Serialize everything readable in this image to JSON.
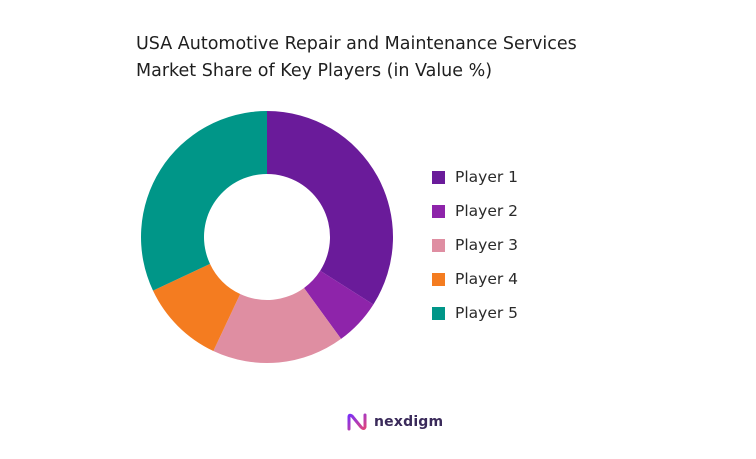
{
  "chart_data": {
    "type": "pie",
    "donut": true,
    "title_lines": [
      "USA Automotive Repair and Maintenance Services",
      "Market Share of Key Players (in Value %)"
    ],
    "categories": [
      "Player 1",
      "Player 2",
      "Player 3",
      "Player 4",
      "Player 5"
    ],
    "values": [
      34,
      6,
      17,
      11,
      32
    ],
    "colors": [
      "#6a1b9a",
      "#8e24aa",
      "#df8ea2",
      "#f47c20",
      "#009688"
    ],
    "legend_position": "right"
  },
  "brand": {
    "name": "nexdigm",
    "icon": "nexdigm-logo-icon"
  }
}
